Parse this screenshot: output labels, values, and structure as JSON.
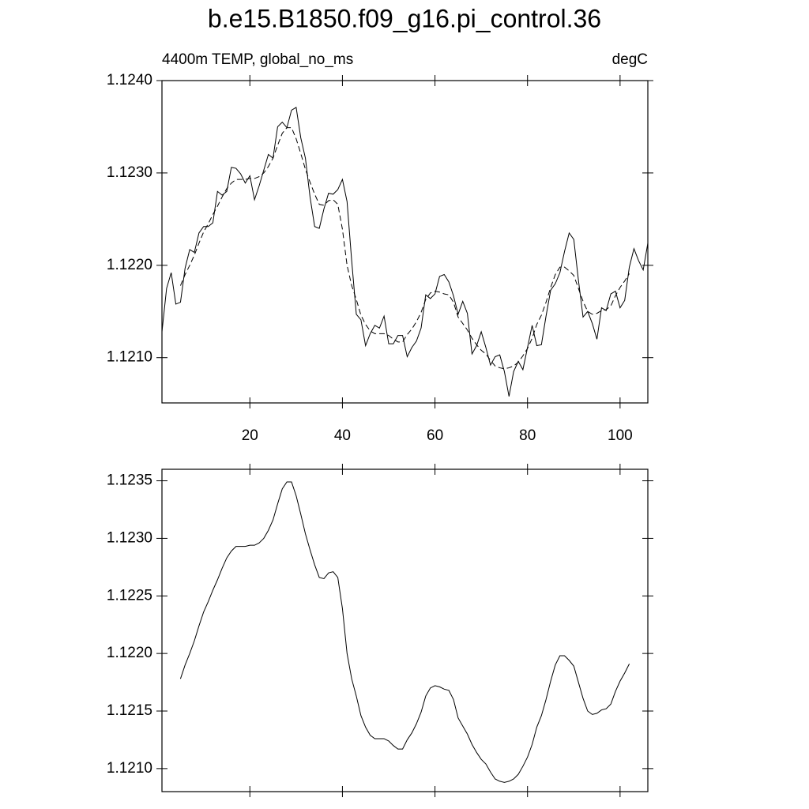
{
  "chart_data": [
    {
      "type": "line",
      "title": "b.e15.B1850.f09_g16.pi_control.36",
      "subtitle_left": "4400m TEMP, global_no_ms",
      "subtitle_right": "degC",
      "x": [
        1,
        2,
        3,
        4,
        5,
        6,
        7,
        8,
        9,
        10,
        11,
        12,
        13,
        14,
        15,
        16,
        17,
        18,
        19,
        20,
        21,
        22,
        23,
        24,
        25,
        26,
        27,
        28,
        29,
        30,
        31,
        32,
        33,
        34,
        35,
        36,
        37,
        38,
        39,
        40,
        41,
        42,
        43,
        44,
        45,
        46,
        47,
        48,
        49,
        50,
        51,
        52,
        53,
        54,
        55,
        56,
        57,
        58,
        59,
        60,
        61,
        62,
        63,
        64,
        65,
        66,
        67,
        68,
        69,
        70,
        71,
        72,
        73,
        74,
        75,
        76,
        77,
        78,
        79,
        80,
        81,
        82,
        83,
        84,
        85,
        86,
        87,
        88,
        89,
        90,
        91,
        92,
        93,
        94,
        95,
        96,
        97,
        98,
        99,
        100,
        101,
        102,
        103,
        104,
        105,
        106
      ],
      "series": [
        {
          "color": "#000000",
          "dashed": false,
          "values": [
            1.12128,
            1.12175,
            1.12192,
            1.12158,
            1.1216,
            1.12197,
            1.12217,
            1.12214,
            1.12235,
            1.12242,
            1.12242,
            1.12246,
            1.1228,
            1.12276,
            1.1228,
            1.12306,
            1.12305,
            1.12299,
            1.12289,
            1.12297,
            1.12271,
            1.12286,
            1.12303,
            1.1232,
            1.12316,
            1.1235,
            1.12355,
            1.12349,
            1.12368,
            1.12371,
            1.12338,
            1.12316,
            1.12274,
            1.12242,
            1.1224,
            1.12261,
            1.12278,
            1.12277,
            1.12282,
            1.12293,
            1.12269,
            1.12205,
            1.12147,
            1.12141,
            1.12113,
            1.12126,
            1.12135,
            1.12132,
            1.12145,
            1.12115,
            1.12115,
            1.12124,
            1.12124,
            1.12101,
            1.12111,
            1.12118,
            1.12132,
            1.12168,
            1.12164,
            1.12169,
            1.12188,
            1.1219,
            1.12182,
            1.12167,
            1.12147,
            1.12161,
            1.12148,
            1.12104,
            1.12113,
            1.12128,
            1.12111,
            1.12092,
            1.12101,
            1.12103,
            1.12085,
            1.12058,
            1.12085,
            1.12096,
            1.12087,
            1.12111,
            1.12135,
            1.12113,
            1.12114,
            1.12145,
            1.12173,
            1.1218,
            1.12192,
            1.12215,
            1.12235,
            1.12228,
            1.12184,
            1.12144,
            1.1215,
            1.12137,
            1.1212,
            1.12154,
            1.12151,
            1.12169,
            1.12172,
            1.12154,
            1.12162,
            1.12198,
            1.12218,
            1.12205,
            1.12195,
            1.12224
          ]
        },
        {
          "color": "#000000",
          "dashed": true,
          "values": [
            null,
            null,
            null,
            null,
            1.12178,
            1.1219,
            1.122,
            1.12211,
            1.12224,
            1.12236,
            1.12245,
            1.12255,
            1.12264,
            1.12274,
            1.12283,
            1.12289,
            1.12293,
            1.12293,
            1.12293,
            1.12294,
            1.12294,
            1.12296,
            1.123,
            1.12307,
            1.12316,
            1.1233,
            1.12343,
            1.12349,
            1.12349,
            1.12337,
            1.12321,
            1.12304,
            1.1229,
            1.12277,
            1.12266,
            1.12265,
            1.1227,
            1.12271,
            1.12266,
            1.12239,
            1.122,
            1.12178,
            1.12163,
            1.12146,
            1.12136,
            1.12129,
            1.12126,
            1.12126,
            1.12126,
            1.12124,
            1.1212,
            1.12117,
            1.12117,
            1.12125,
            1.12131,
            1.12139,
            1.12149,
            1.12163,
            1.1217,
            1.12172,
            1.12171,
            1.12169,
            1.12168,
            1.1216,
            1.12144,
            1.12137,
            1.1213,
            1.12121,
            1.12114,
            1.12108,
            1.12104,
            1.12097,
            1.12091,
            1.12089,
            1.12088,
            1.12089,
            1.12091,
            1.12095,
            1.12102,
            1.1211,
            1.12121,
            1.12136,
            1.12146,
            1.1216,
            1.12176,
            1.1219,
            1.12198,
            1.12198,
            1.12194,
            1.12189,
            1.12175,
            1.12161,
            1.1215,
            1.12147,
            1.12148,
            1.12151,
            1.12152,
            1.12156,
            1.12167,
            1.12176,
            1.12183,
            1.12191,
            null,
            null,
            null,
            null
          ]
        }
      ],
      "xlim": [
        1,
        106
      ],
      "ylim": [
        1.12051,
        1.124
      ],
      "xticks": [
        20,
        40,
        60,
        80,
        100
      ],
      "yticks": [
        {
          "value": 1.121,
          "label": "1.1210"
        },
        {
          "value": 1.122,
          "label": "1.1220"
        },
        {
          "value": 1.123,
          "label": "1.1230"
        },
        {
          "value": 1.124,
          "label": "1.1240"
        }
      ]
    },
    {
      "type": "line",
      "x": [
        5,
        6,
        7,
        8,
        9,
        10,
        11,
        12,
        13,
        14,
        15,
        16,
        17,
        18,
        19,
        20,
        21,
        22,
        23,
        24,
        25,
        26,
        27,
        28,
        29,
        30,
        31,
        32,
        33,
        34,
        35,
        36,
        37,
        38,
        39,
        40,
        41,
        42,
        43,
        44,
        45,
        46,
        47,
        48,
        49,
        50,
        51,
        52,
        53,
        54,
        55,
        56,
        57,
        58,
        59,
        60,
        61,
        62,
        63,
        64,
        65,
        66,
        67,
        68,
        69,
        70,
        71,
        72,
        73,
        74,
        75,
        76,
        77,
        78,
        79,
        80,
        81,
        82,
        83,
        84,
        85,
        86,
        87,
        88,
        89,
        90,
        91,
        92,
        93,
        94,
        95,
        96,
        97,
        98,
        99,
        100,
        101,
        102
      ],
      "series": [
        {
          "color": "#000000",
          "dashed": false,
          "values": [
            1.12178,
            1.1219,
            1.122,
            1.12211,
            1.12224,
            1.12236,
            1.12245,
            1.12255,
            1.12264,
            1.12274,
            1.12283,
            1.12289,
            1.12293,
            1.12293,
            1.12293,
            1.12294,
            1.12294,
            1.12296,
            1.123,
            1.12307,
            1.12316,
            1.1233,
            1.12343,
            1.12349,
            1.12349,
            1.12337,
            1.12321,
            1.12304,
            1.1229,
            1.12277,
            1.12266,
            1.12265,
            1.1227,
            1.12271,
            1.12266,
            1.12239,
            1.122,
            1.12178,
            1.12163,
            1.12146,
            1.12136,
            1.12129,
            1.12126,
            1.12126,
            1.12126,
            1.12124,
            1.1212,
            1.12117,
            1.12117,
            1.12125,
            1.12131,
            1.12139,
            1.12149,
            1.12163,
            1.1217,
            1.12172,
            1.12171,
            1.12169,
            1.12168,
            1.1216,
            1.12144,
            1.12137,
            1.1213,
            1.12121,
            1.12114,
            1.12108,
            1.12104,
            1.12097,
            1.12091,
            1.12089,
            1.12088,
            1.12089,
            1.12091,
            1.12095,
            1.12102,
            1.1211,
            1.12121,
            1.12136,
            1.12146,
            1.1216,
            1.12176,
            1.1219,
            1.12198,
            1.12198,
            1.12194,
            1.12189,
            1.12175,
            1.12161,
            1.1215,
            1.12147,
            1.12148,
            1.12151,
            1.12152,
            1.12156,
            1.12167,
            1.12176,
            1.12183,
            1.12191
          ]
        }
      ],
      "xlim": [
        1,
        106
      ],
      "ylim": [
        1.1208,
        1.1236
      ],
      "xticks": [
        20,
        40,
        60,
        80,
        100
      ],
      "yticks": [
        {
          "value": 1.121,
          "label": "1.1210"
        },
        1.1215,
        {
          "value": 1.122,
          "label": "1.1220"
        },
        1.1225,
        {
          "value": 1.123,
          "label": "1.1230"
        },
        1.1235
      ]
    }
  ]
}
